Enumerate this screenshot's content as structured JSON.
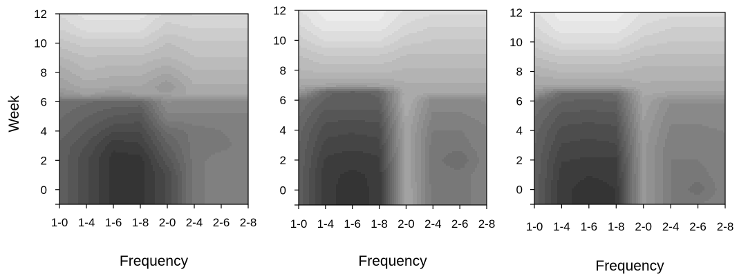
{
  "chart_data": [
    {
      "type": "heatmap",
      "panel": "left",
      "xlabel": "Frequency",
      "ylabel": "Week",
      "x_ticks": [
        "1-0",
        "1-4",
        "1-6",
        "1-8",
        "2-0",
        "2-4",
        "2-6",
        "2-8"
      ],
      "y_ticks": [
        0,
        2,
        4,
        6,
        8,
        10,
        12
      ],
      "ylim": [
        -1,
        12
      ],
      "x": [
        0,
        1,
        2,
        3,
        4,
        5,
        6,
        7
      ],
      "y": [
        -1,
        0,
        1,
        2,
        3,
        4,
        5,
        6,
        6.5,
        7,
        8,
        9,
        10,
        11,
        12
      ],
      "z": [
        [
          3,
          2,
          1,
          1,
          2,
          4,
          4.5,
          4.5
        ],
        [
          3,
          2,
          1,
          1,
          2,
          4,
          4.5,
          4.5
        ],
        [
          3,
          2,
          1,
          1,
          2,
          4,
          4.5,
          4.5
        ],
        [
          3,
          2,
          1,
          1,
          2.5,
          4,
          4.5,
          4.5
        ],
        [
          3,
          2.3,
          1.3,
          1.5,
          3,
          4,
          4,
          4.5
        ],
        [
          3.3,
          2.7,
          2,
          2,
          3.5,
          4,
          4.2,
          4.5
        ],
        [
          3.5,
          3.1,
          2.7,
          2.5,
          4.5,
          4.5,
          4.5,
          4.5
        ],
        [
          3.8,
          3.5,
          3.3,
          3.3,
          5,
          4.8,
          4.8,
          4.8
        ],
        [
          5.2,
          5.8,
          5.3,
          5.8,
          5.8,
          6.2,
          6.2,
          6.2
        ],
        [
          5.8,
          6.2,
          6.1,
          6.1,
          5.4,
          6.4,
          6.4,
          6.4
        ],
        [
          6.2,
          6.8,
          6.6,
          6.6,
          6.1,
          6.8,
          6.8,
          6.8
        ],
        [
          6.8,
          7.2,
          7.1,
          7.1,
          6.8,
          7.2,
          7.2,
          7.2
        ],
        [
          7.4,
          7.8,
          7.8,
          7.8,
          7.2,
          7.5,
          7.5,
          7.5
        ],
        [
          8,
          8.5,
          8.5,
          8.5,
          7.8,
          8,
          8,
          8
        ],
        [
          8.4,
          8.9,
          8.9,
          8.9,
          8.2,
          8.4,
          8.4,
          8.4
        ]
      ]
    },
    {
      "type": "heatmap",
      "panel": "middle",
      "xlabel": "Frequency",
      "ylabel": "",
      "x_ticks": [
        "1-0",
        "1-4",
        "1-6",
        "1-8",
        "2-0",
        "2-4",
        "2-6",
        "2-8"
      ],
      "y_ticks": [
        0,
        2,
        4,
        6,
        8,
        10,
        12
      ],
      "ylim": [
        -1,
        12
      ],
      "x": [
        0,
        1,
        2,
        3,
        4,
        5,
        6,
        7
      ],
      "y": [
        -1,
        0,
        1,
        2,
        3,
        4,
        5,
        6,
        6.5,
        7,
        8,
        9,
        10,
        11,
        12
      ],
      "z": [
        [
          3,
          1.3,
          1,
          1.3,
          6.2,
          4,
          4,
          4.5
        ],
        [
          3,
          1.3,
          1,
          1.3,
          6.2,
          4,
          4,
          4.5
        ],
        [
          3,
          1.3,
          1.1,
          1.3,
          6,
          4,
          4,
          4.5
        ],
        [
          3,
          1.5,
          1.3,
          1.5,
          6,
          4,
          3.5,
          4.5
        ],
        [
          3.1,
          1.8,
          1.7,
          1.8,
          6,
          4,
          4,
          4.5
        ],
        [
          3.2,
          2.1,
          2,
          2.1,
          6,
          4.2,
          4.2,
          4.5
        ],
        [
          3.5,
          2.5,
          2.5,
          2.5,
          6.2,
          4.5,
          4.5,
          4.8
        ],
        [
          3.8,
          3,
          3,
          3,
          6.5,
          4.8,
          4.8,
          5
        ],
        [
          5.5,
          3.2,
          2.8,
          3.2,
          6.4,
          6.2,
          6.2,
          6.2
        ],
        [
          6.2,
          6,
          6,
          6,
          6.4,
          6.4,
          6.4,
          6.4
        ],
        [
          6.8,
          7,
          7,
          7,
          6.8,
          6.8,
          6.8,
          6.8
        ],
        [
          7.2,
          7.6,
          7.6,
          7.6,
          7.2,
          7.2,
          7.2,
          7.2
        ],
        [
          7.8,
          8.4,
          8.4,
          8.4,
          7.8,
          7.6,
          7.6,
          7.6
        ],
        [
          8.3,
          9,
          9,
          9,
          8.3,
          8,
          8,
          8
        ],
        [
          8.7,
          9.3,
          9.3,
          9.3,
          8.7,
          8.5,
          8.5,
          8.5
        ]
      ]
    },
    {
      "type": "heatmap",
      "panel": "right",
      "xlabel": "Frequency",
      "ylabel": "",
      "x_ticks": [
        "1-0",
        "1-4",
        "1-6",
        "1-8",
        "2-0",
        "2-4",
        "2-6",
        "2-8"
      ],
      "y_ticks": [
        0,
        2,
        4,
        6,
        8,
        10,
        12
      ],
      "ylim": [
        -1,
        12
      ],
      "x": [
        0,
        1,
        2,
        3,
        4,
        5,
        6,
        7
      ],
      "y": [
        -1,
        0,
        1,
        2,
        3,
        4,
        5,
        6,
        6.5,
        7,
        8,
        9,
        10,
        11,
        12
      ],
      "z": [
        [
          3,
          1.3,
          1,
          1.2,
          5.5,
          4.2,
          4.2,
          4.5
        ],
        [
          3,
          1.3,
          1,
          1.2,
          5.5,
          4.2,
          3.6,
          4.5
        ],
        [
          3,
          1.4,
          1.2,
          1.3,
          5.5,
          4.2,
          4,
          4.5
        ],
        [
          3,
          1.6,
          1.5,
          1.5,
          5.5,
          4.2,
          4.2,
          4.5
        ],
        [
          3.1,
          1.9,
          1.8,
          1.9,
          5.5,
          4.3,
          4.3,
          4.5
        ],
        [
          3.2,
          2.2,
          2.1,
          2.2,
          5.6,
          4.5,
          4.5,
          4.6
        ],
        [
          3.5,
          2.6,
          2.5,
          2.6,
          5.8,
          4.7,
          4.7,
          4.8
        ],
        [
          3.8,
          3.1,
          3,
          3.1,
          6,
          5,
          5,
          5
        ],
        [
          5.4,
          3.4,
          3.3,
          3.5,
          6.2,
          6,
          6,
          6
        ],
        [
          6,
          6,
          6,
          6,
          6.4,
          6.3,
          6.3,
          6.3
        ],
        [
          6.6,
          6.9,
          6.9,
          6.9,
          6.7,
          6.7,
          6.7,
          6.7
        ],
        [
          7.2,
          7.6,
          7.6,
          7.6,
          7.2,
          7.1,
          7.1,
          7.1
        ],
        [
          7.8,
          8.4,
          8.4,
          8.4,
          7.8,
          7.6,
          7.6,
          7.6
        ],
        [
          8.3,
          9,
          9,
          9,
          8.3,
          8,
          8,
          8
        ],
        [
          8.7,
          9.3,
          9.3,
          9.3,
          8.7,
          8.5,
          8.5,
          8.5
        ]
      ]
    }
  ]
}
